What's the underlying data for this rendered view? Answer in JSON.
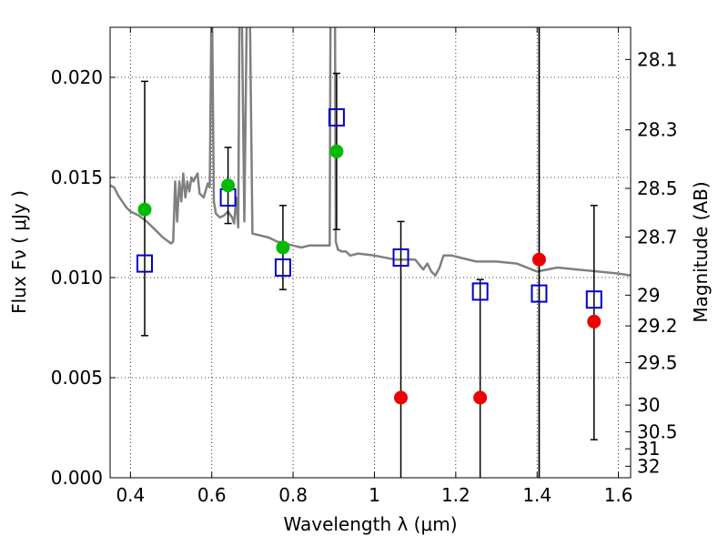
{
  "chart_data": {
    "type": "scatter",
    "title": "",
    "xlabel": "Wavelength  λ (μm)",
    "ylabel": "Flux  Fν  ( μJy )",
    "ylabel_right": "Magnitude (AB)",
    "xlim": [
      0.35,
      1.63
    ],
    "ylim": [
      0.0,
      0.0225
    ],
    "grid": true,
    "x_ticks": [
      "0.4",
      "0.6",
      "0.8",
      "1",
      "1.2",
      "1.4",
      "1.6"
    ],
    "y_ticks": [
      "0.000",
      "0.005",
      "0.010",
      "0.015",
      "0.020"
    ],
    "right_ticks": [
      "28.1",
      "28.3",
      "28.5",
      "28.7",
      "29",
      "29.2",
      "29.5",
      "30",
      "30.5",
      "31",
      "32"
    ],
    "vertical_line_x": 1.405,
    "colors": {
      "template": "#808080",
      "observed_box": "#0000cc",
      "detection": "#00bb00",
      "non_detection": "#ee0000",
      "errorbar": "#000000"
    },
    "template_spectrum": {
      "name": "",
      "x": [
        0.35,
        0.36,
        0.37,
        0.38,
        0.39,
        0.4,
        0.42,
        0.44,
        0.46,
        0.48,
        0.5,
        0.505,
        0.51,
        0.515,
        0.52,
        0.525,
        0.53,
        0.535,
        0.54,
        0.545,
        0.55,
        0.555,
        0.56,
        0.565,
        0.57,
        0.58,
        0.59,
        0.595,
        0.6,
        0.605,
        0.61,
        0.62,
        0.63,
        0.64,
        0.65,
        0.655,
        0.66,
        0.665,
        0.67,
        0.68,
        0.69,
        0.7,
        0.72,
        0.74,
        0.76,
        0.78,
        0.8,
        0.82,
        0.84,
        0.86,
        0.88,
        0.89,
        0.895,
        0.9,
        0.905,
        0.91,
        0.92,
        0.93,
        0.94,
        0.96,
        1.0,
        1.05,
        1.08,
        1.1,
        1.12,
        1.13,
        1.14,
        1.15,
        1.16,
        1.17,
        1.19,
        1.21,
        1.25,
        1.3,
        1.35,
        1.4,
        1.45,
        1.5,
        1.55,
        1.6,
        1.63
      ],
      "y": [
        0.0146,
        0.0145,
        0.0141,
        0.0138,
        0.0135,
        0.0133,
        0.0131,
        0.0128,
        0.0124,
        0.012,
        0.0117,
        0.0118,
        0.0148,
        0.0128,
        0.0148,
        0.0138,
        0.0152,
        0.014,
        0.0148,
        0.0143,
        0.015,
        0.0148,
        0.015,
        0.0152,
        0.0142,
        0.014,
        0.0147,
        0.0145,
        0.025,
        0.0138,
        0.0132,
        0.013,
        0.0131,
        0.0133,
        0.013,
        0.0127,
        0.014,
        0.0125,
        0.03,
        0.0128,
        0.03,
        0.0122,
        0.0121,
        0.012,
        0.0118,
        0.0117,
        0.0116,
        0.0115,
        0.0116,
        0.0116,
        0.0116,
        0.0116,
        0.04,
        0.04,
        0.0118,
        0.0114,
        0.0113,
        0.0113,
        0.0111,
        0.0112,
        0.0111,
        0.0109,
        0.0109,
        0.0109,
        0.0104,
        0.0107,
        0.0103,
        0.0101,
        0.0105,
        0.0111,
        0.0111,
        0.011,
        0.0108,
        0.0108,
        0.0107,
        0.0103,
        0.0105,
        0.0104,
        0.0103,
        0.0102,
        0.0101
      ]
    },
    "observed_boxes": {
      "name": "",
      "x": [
        0.435,
        0.64,
        0.775,
        0.907,
        1.065,
        1.26,
        1.405,
        1.54
      ],
      "y": [
        0.0107,
        0.014,
        0.0105,
        0.018,
        0.011,
        0.0093,
        0.0092,
        0.0089
      ]
    },
    "model_points": {
      "name": "",
      "x": [
        0.435,
        0.64,
        0.775,
        0.907,
        1.065,
        1.26,
        1.405,
        1.54
      ],
      "y": [
        0.0134,
        0.0146,
        0.0115,
        0.0163,
        0.004,
        0.004,
        0.0109,
        0.0078
      ],
      "kind": [
        "detection",
        "detection",
        "detection",
        "detection",
        "non_detection",
        "non_detection",
        "non_detection",
        "non_detection"
      ]
    },
    "error_bars": {
      "x": [
        0.435,
        0.64,
        0.775,
        0.907,
        1.065,
        1.26,
        1.405,
        1.54
      ],
      "low": [
        0.0071,
        0.0127,
        0.0094,
        0.0124,
        0.0,
        0.0,
        0.0,
        0.0019
      ],
      "high": [
        0.0198,
        0.0165,
        0.0136,
        0.0202,
        0.0128,
        0.0099,
        0.0225,
        0.0136
      ],
      "cap": [
        true,
        true,
        true,
        true,
        true,
        true,
        false,
        true
      ]
    }
  }
}
